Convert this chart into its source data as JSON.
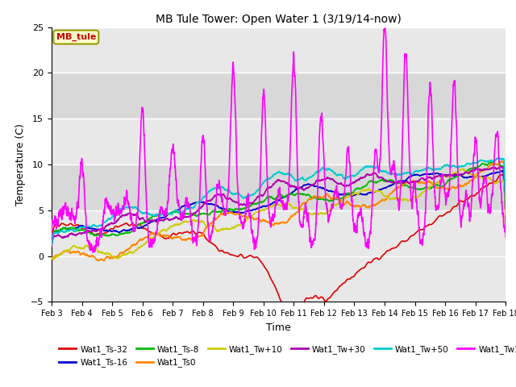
{
  "title": "MB Tule Tower: Open Water 1 (3/19/14-now)",
  "xlabel": "Time",
  "ylabel": "Temperature (C)",
  "ylim": [
    -5,
    25
  ],
  "xlim": [
    0,
    15
  ],
  "background_color": "#ffffff",
  "plot_bg_color": "#e8e8e8",
  "series": {
    "Wat1_Ts-32": {
      "color": "#dd0000",
      "lw": 1.2
    },
    "Wat1_Ts-16": {
      "color": "#0000cc",
      "lw": 1.2
    },
    "Wat1_Ts-8": {
      "color": "#00bb00",
      "lw": 1.2
    },
    "Wat1_Ts0": {
      "color": "#ff8800",
      "lw": 1.2
    },
    "Wat1_Tw+10": {
      "color": "#cccc00",
      "lw": 1.2
    },
    "Wat1_Tw+30": {
      "color": "#aa00aa",
      "lw": 1.2
    },
    "Wat1_Tw+50": {
      "color": "#00cccc",
      "lw": 1.2
    },
    "Wat1_Tw100": {
      "color": "#ff00ff",
      "lw": 1.2
    }
  },
  "xtick_labels": [
    "Feb 3",
    "Feb 4",
    "Feb 5",
    "Feb 6",
    "Feb 7",
    "Feb 8",
    "Feb 9",
    "Feb 10",
    "Feb 11",
    "Feb 12",
    "Feb 13",
    "Feb 14",
    "Feb 15",
    "Feb 16",
    "Feb 17",
    "Feb 18"
  ],
  "xtick_positions": [
    0,
    1,
    2,
    3,
    4,
    5,
    6,
    7,
    8,
    9,
    10,
    11,
    12,
    13,
    14,
    15
  ],
  "annotation_text": "MB_tule",
  "grid_color": "#ffffff",
  "band_color": "#d8d8d8",
  "yticks": [
    -5,
    0,
    5,
    10,
    15,
    20,
    25
  ]
}
